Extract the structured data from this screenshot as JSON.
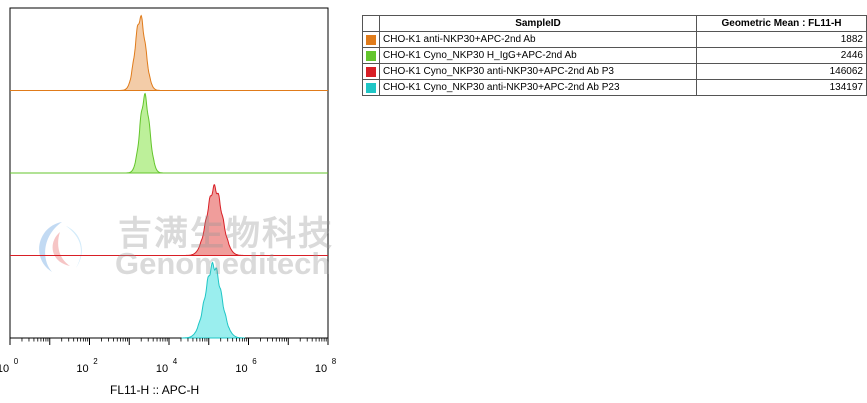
{
  "chart_data": {
    "type": "histogram",
    "x_label": "FL11-H :: APC-H",
    "x_scale": "log",
    "x_range": [
      1,
      100000000
    ],
    "x_ticks": [
      {
        "base": "10",
        "exp": "0"
      },
      {
        "base": "10",
        "exp": "2"
      },
      {
        "base": "10",
        "exp": "4"
      },
      {
        "base": "10",
        "exp": "6"
      },
      {
        "base": "10",
        "exp": "8"
      }
    ],
    "layout": "offset-stacked",
    "series": [
      {
        "name": "CHO-K1 anti-NKP30+APC-2nd Ab",
        "color": "#E07B1A",
        "fill": "#F2C79E",
        "geo_mean": "1882",
        "peak": 1900,
        "spread_decades": 0.13,
        "height": 0.88
      },
      {
        "name": "CHO-K1 Cyno_NKP30 H_IgG+APC-2nd Ab",
        "color": "#63C52B",
        "fill": "#B6EE8F",
        "geo_mean": "2446",
        "peak": 2450,
        "spread_decades": 0.12,
        "height": 0.92
      },
      {
        "name": "CHO-K1 Cyno_NKP30 anti-NKP30+APC-2nd Ab P3",
        "color": "#D81F26",
        "fill": "#EE9290",
        "geo_mean": "146062",
        "peak": 140000,
        "spread_decades": 0.19,
        "height": 0.82
      },
      {
        "name": "CHO-K1 Cyno_NKP30 anti-NKP30+APC-2nd Ab P23",
        "color": "#1FC6C6",
        "fill": "#8FECEC",
        "geo_mean": "134197",
        "peak": 130000,
        "spread_decades": 0.2,
        "height": 0.88
      }
    ]
  },
  "table": {
    "headers": [
      "SampleID",
      "Geometric Mean : FL11-H"
    ]
  },
  "watermark": {
    "cn": "吉满生物科技",
    "en": "Genomeditech"
  }
}
